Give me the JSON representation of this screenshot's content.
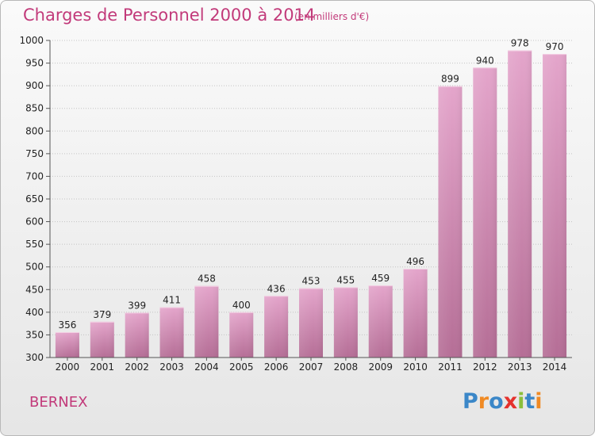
{
  "header": {
    "title": "Charges de Personnel 2000 à 2014",
    "subtitle": "(en milliers d'€)"
  },
  "footer": {
    "commune": "BERNEX",
    "logo": "Proxiti"
  },
  "chart_data": {
    "type": "bar",
    "title": "Charges de Personnel 2000 à 2014",
    "subtitle": "(en milliers d'€)",
    "xlabel": "",
    "ylabel": "",
    "categories": [
      "2000",
      "2001",
      "2002",
      "2003",
      "2004",
      "2005",
      "2006",
      "2007",
      "2008",
      "2009",
      "2010",
      "2011",
      "2012",
      "2013",
      "2014"
    ],
    "values": [
      356,
      379,
      399,
      411,
      458,
      400,
      436,
      453,
      455,
      459,
      496,
      899,
      940,
      978,
      970
    ],
    "ylim": [
      300,
      1000
    ],
    "yticks": [
      300,
      350,
      400,
      450,
      500,
      550,
      600,
      650,
      700,
      750,
      800,
      850,
      900,
      950,
      1000
    ],
    "grid": true,
    "bar_color": "#d88bb5"
  }
}
